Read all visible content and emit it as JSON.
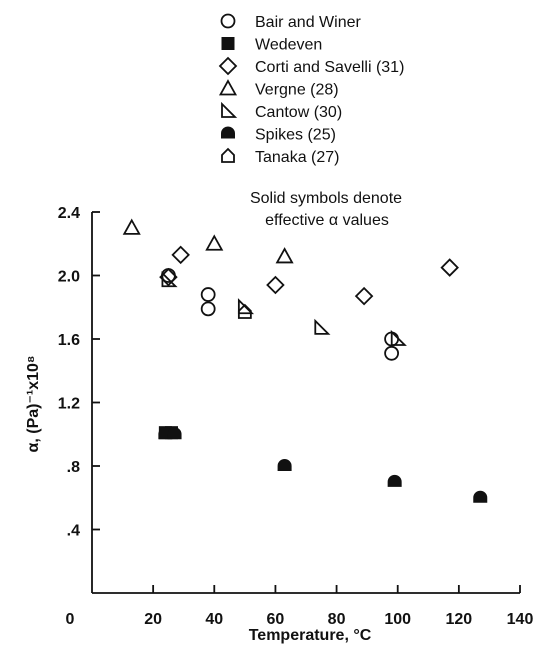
{
  "chart_data": {
    "type": "scatter",
    "title": "",
    "xlabel": "Temperature, °C",
    "ylabel": "α, (Pa)⁻¹x10⁸",
    "xlim": [
      0,
      140
    ],
    "ylim": [
      0,
      2.4
    ],
    "xticks": [
      0,
      20,
      40,
      60,
      80,
      100,
      120,
      140
    ],
    "xtick_labels": [
      "0",
      "20",
      "40",
      "60",
      "80",
      "100",
      "120",
      "140"
    ],
    "yticks": [
      0.4,
      0.8,
      1.2,
      1.6,
      2.0,
      2.4
    ],
    "ytick_labels": [
      ".4",
      ".8",
      "1.2",
      "1.6",
      "2.0",
      "2.4"
    ],
    "grid": false,
    "legend_position": "top",
    "note": [
      "Solid symbols denote",
      "effective α values"
    ],
    "series": [
      {
        "name": "Bair and Winer",
        "marker": "circle-open",
        "points": [
          [
            25,
            2.0
          ],
          [
            38,
            1.88
          ],
          [
            38,
            1.79
          ],
          [
            98,
            1.6
          ],
          [
            98,
            1.51
          ]
        ]
      },
      {
        "name": "Wedeven",
        "marker": "square-filled",
        "points": [
          [
            24,
            1.01
          ],
          [
            26,
            1.01
          ]
        ]
      },
      {
        "name": "Corti and Savelli (31)",
        "marker": "diamond-open",
        "points": [
          [
            25,
            1.99
          ],
          [
            29,
            2.13
          ],
          [
            60,
            1.94
          ],
          [
            89,
            1.87
          ],
          [
            117,
            2.05
          ]
        ]
      },
      {
        "name": "Vergne (28)",
        "marker": "triangle-open",
        "points": [
          [
            13,
            2.3
          ],
          [
            40,
            2.2
          ],
          [
            63,
            2.12
          ]
        ]
      },
      {
        "name": "Cantow (30)",
        "marker": "right-triangle-open",
        "points": [
          [
            25,
            1.97
          ],
          [
            50,
            1.8
          ],
          [
            75,
            1.67
          ],
          [
            100,
            1.6
          ]
        ]
      },
      {
        "name": "Spikes (25)",
        "marker": "half-disc-filled",
        "points": [
          [
            24,
            1.0
          ],
          [
            27,
            1.0
          ],
          [
            63,
            0.8
          ],
          [
            99,
            0.7
          ],
          [
            127,
            0.6
          ]
        ]
      },
      {
        "name": "Tanaka (27)",
        "marker": "pentagon-open",
        "points": [
          [
            50,
            1.77
          ]
        ]
      }
    ]
  }
}
